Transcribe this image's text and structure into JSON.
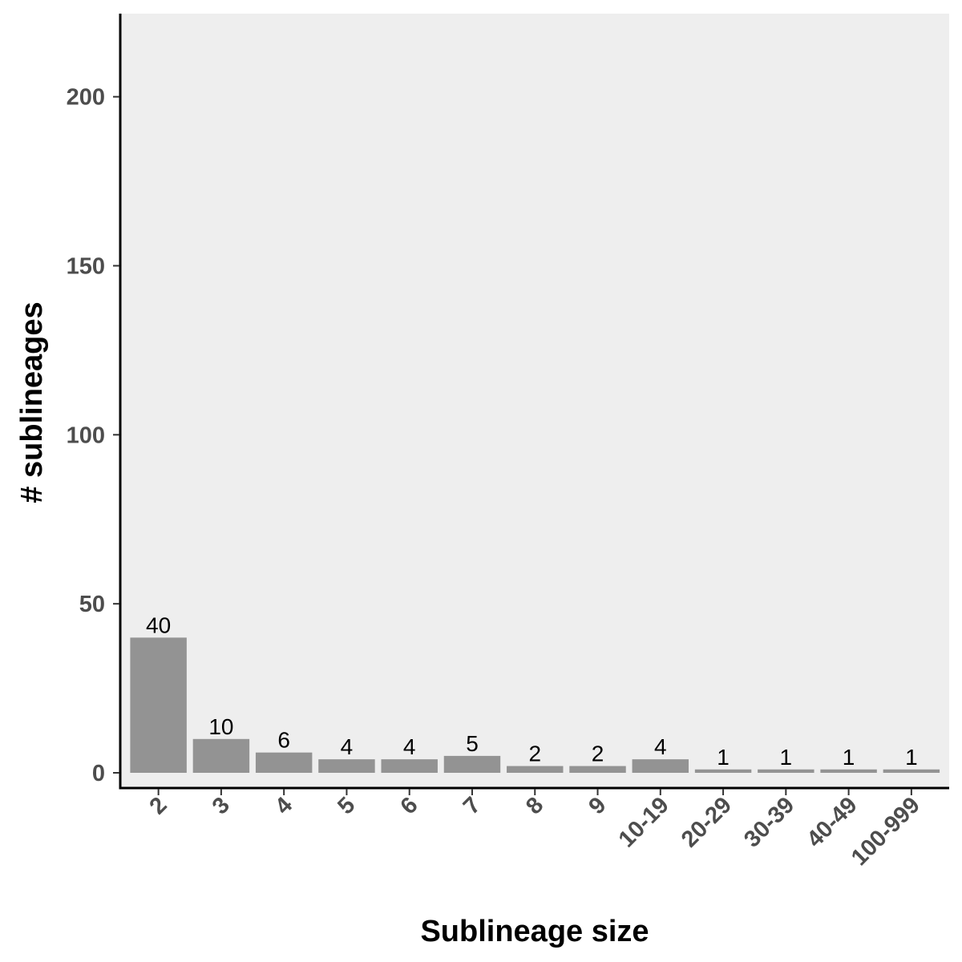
{
  "chart_data": {
    "type": "bar",
    "categories": [
      "2",
      "3",
      "4",
      "5",
      "6",
      "7",
      "8",
      "9",
      "10-19",
      "20-29",
      "30-39",
      "40-49",
      "100-999"
    ],
    "values": [
      40,
      10,
      6,
      4,
      4,
      5,
      2,
      2,
      4,
      1,
      1,
      1,
      1
    ],
    "data_labels": [
      "40",
      "10",
      "6",
      "4",
      "4",
      "5",
      "2",
      "2",
      "4",
      "1",
      "1",
      "1",
      "1"
    ],
    "title": "",
    "xlabel": "Sublineage size",
    "ylabel": "# sublineages",
    "ylim": [
      0,
      220
    ],
    "yticks": [
      0,
      50,
      100,
      150,
      200
    ],
    "ytick_labels": [
      "0",
      "50",
      "100",
      "150",
      "200"
    ],
    "grid": false,
    "legend": "none",
    "colors": {
      "bar": "#939393",
      "panel_background": "#eeeeee",
      "axis_line": "#000000",
      "tick_text": "#4d4d4d"
    }
  }
}
